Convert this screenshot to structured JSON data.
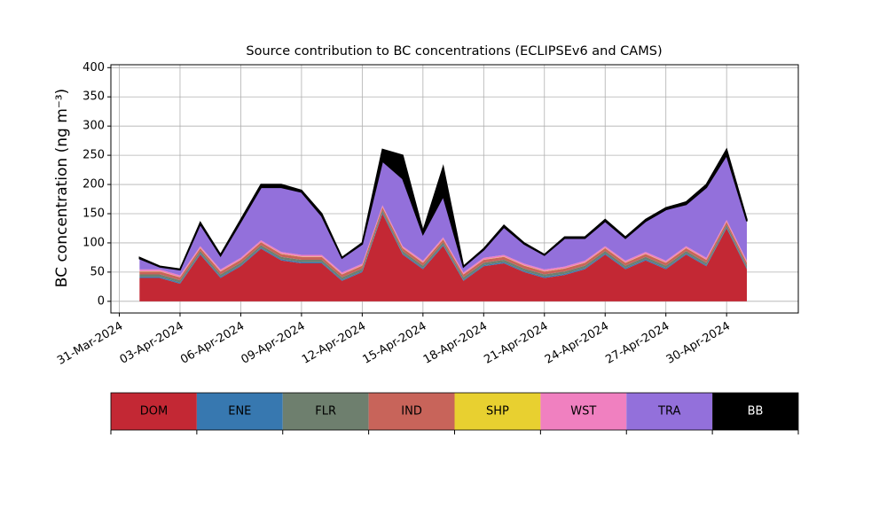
{
  "chart_data": {
    "type": "stacked_area",
    "title": "Source contribution to BC concentrations (ECLIPSEv6 and CAMS)",
    "y_label": "BC concentration (ng m⁻³)",
    "x": [
      "2024-04-01",
      "2024-04-02",
      "2024-04-03",
      "2024-04-04",
      "2024-04-05",
      "2024-04-06",
      "2024-04-07",
      "2024-04-08",
      "2024-04-09",
      "2024-04-10",
      "2024-04-11",
      "2024-04-12",
      "2024-04-13",
      "2024-04-14",
      "2024-04-15",
      "2024-04-16",
      "2024-04-17",
      "2024-04-18",
      "2024-04-19",
      "2024-04-20",
      "2024-04-21",
      "2024-04-22",
      "2024-04-23",
      "2024-04-24",
      "2024-04-25",
      "2024-04-26",
      "2024-04-27",
      "2024-04-28",
      "2024-04-29",
      "2024-04-30",
      "2024-05-01"
    ],
    "series": [
      {
        "name": "DOM",
        "color": "#c32834",
        "values": [
          40,
          40,
          30,
          80,
          40,
          60,
          90,
          70,
          65,
          65,
          35,
          50,
          150,
          80,
          55,
          95,
          35,
          60,
          65,
          50,
          40,
          45,
          55,
          80,
          55,
          70,
          55,
          80,
          60,
          125,
          55
        ]
      },
      {
        "name": "ENE",
        "color": "#3778b0",
        "values": [
          2,
          2,
          2,
          2,
          2,
          2,
          2,
          2,
          2,
          2,
          2,
          2,
          2,
          2,
          2,
          2,
          2,
          2,
          2,
          2,
          2,
          2,
          2,
          2,
          2,
          2,
          2,
          2,
          2,
          2,
          2
        ]
      },
      {
        "name": "FLR",
        "color": "#6e7f6e",
        "values": [
          4,
          4,
          4,
          4,
          4,
          4,
          4,
          4,
          4,
          4,
          4,
          4,
          4,
          4,
          4,
          4,
          4,
          4,
          4,
          4,
          4,
          4,
          4,
          4,
          4,
          4,
          4,
          4,
          4,
          4,
          4
        ]
      },
      {
        "name": "IND",
        "color": "#c8645a",
        "values": [
          5,
          5,
          5,
          5,
          5,
          5,
          5,
          5,
          5,
          5,
          5,
          5,
          5,
          5,
          5,
          5,
          5,
          5,
          5,
          5,
          5,
          5,
          5,
          5,
          5,
          5,
          5,
          5,
          5,
          5,
          5
        ]
      },
      {
        "name": "SHP",
        "color": "#e8d030",
        "values": [
          0.5,
          0.5,
          0.5,
          0.5,
          0.5,
          0.5,
          0.5,
          0.5,
          0.5,
          0.5,
          0.5,
          0.5,
          0.5,
          0.5,
          0.5,
          0.5,
          0.5,
          0.5,
          0.5,
          0.5,
          0.5,
          0.5,
          0.5,
          0.5,
          0.5,
          0.5,
          0.5,
          0.5,
          0.5,
          0.5,
          0.5
        ]
      },
      {
        "name": "WST",
        "color": "#f080c0",
        "values": [
          3,
          3,
          3,
          3,
          3,
          3,
          3,
          3,
          3,
          3,
          3,
          3,
          3,
          3,
          3,
          3,
          3,
          3,
          3,
          3,
          3,
          3,
          3,
          3,
          3,
          3,
          3,
          3,
          3,
          3,
          3
        ]
      },
      {
        "name": "TRA",
        "color": "#9370db",
        "values": [
          18.5,
          4.5,
          9.5,
          37.5,
          23.5,
          61.5,
          90.5,
          110.5,
          107.5,
          66.5,
          24.5,
          33.5,
          75.5,
          115.5,
          45.5,
          70.5,
          9.5,
          13.5,
          47.5,
          33.5,
          24.5,
          48.5,
          38.5,
          42.5,
          38.5,
          52.5,
          87.5,
          71.5,
          120.5,
          110.5,
          67.5
        ]
      },
      {
        "name": "BB",
        "color": "#000000",
        "values": [
          2,
          1,
          1,
          3,
          2,
          4,
          5,
          5,
          3,
          4,
          1,
          2,
          20,
          40,
          5,
          50,
          1,
          2,
          3,
          2,
          1,
          2,
          2,
          3,
          2,
          3,
          3,
          4,
          5,
          10,
          3
        ]
      }
    ],
    "xlim": [
      "2024-03-30T14:00",
      "2024-05-03T13:00"
    ],
    "xticks": [
      {
        "value": "2024-03-31",
        "label": "31-Mar-2024"
      },
      {
        "value": "2024-04-03",
        "label": "03-Apr-2024"
      },
      {
        "value": "2024-04-06",
        "label": "06-Apr-2024"
      },
      {
        "value": "2024-04-09",
        "label": "09-Apr-2024"
      },
      {
        "value": "2024-04-12",
        "label": "12-Apr-2024"
      },
      {
        "value": "2024-04-15",
        "label": "15-Apr-2024"
      },
      {
        "value": "2024-04-18",
        "label": "18-Apr-2024"
      },
      {
        "value": "2024-04-21",
        "label": "21-Apr-2024"
      },
      {
        "value": "2024-04-24",
        "label": "24-Apr-2024"
      },
      {
        "value": "2024-04-27",
        "label": "27-Apr-2024"
      },
      {
        "value": "2024-04-30",
        "label": "30-Apr-2024"
      }
    ],
    "ylim": [
      -20,
      405
    ],
    "yticks": [
      0,
      50,
      100,
      150,
      200,
      250,
      300,
      350,
      400
    ],
    "grid": true,
    "legend": "bottom"
  }
}
